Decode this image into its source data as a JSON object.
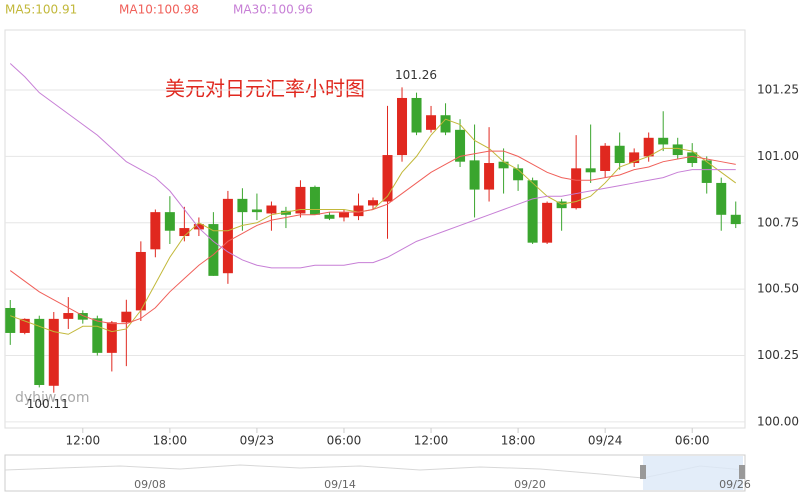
{
  "chart_data": {
    "type": "candlestick",
    "title": "美元对日元汇率小时图",
    "watermark": "dyhjw.com",
    "categories": [
      null,
      null,
      null,
      null,
      null,
      "12:00",
      null,
      null,
      null,
      null,
      null,
      "18:00",
      null,
      null,
      null,
      null,
      null,
      "09/23",
      null,
      null,
      null,
      null,
      null,
      "06:00",
      null,
      null,
      null,
      null,
      null,
      "12:00",
      null,
      null,
      null,
      null,
      null,
      "18:00",
      null,
      null,
      null,
      null,
      null,
      "09/24",
      null,
      null,
      null,
      null,
      null,
      "06:00",
      null,
      null,
      null
    ],
    "open": [
      100.429,
      100.335,
      100.388,
      100.136,
      100.388,
      100.41,
      100.39,
      100.26,
      100.375,
      100.42,
      100.65,
      100.79,
      100.7,
      100.725,
      100.745,
      100.56,
      100.84,
      100.8,
      100.785,
      100.795,
      100.785,
      100.885,
      100.78,
      100.77,
      100.775,
      100.815,
      100.83,
      101.005,
      101.22,
      101.1,
      101.155,
      101.1,
      100.985,
      100.875,
      100.98,
      100.955,
      100.91,
      100.675,
      100.83,
      100.805,
      100.955,
      100.945,
      101.04,
      100.975,
      101.0,
      101.07,
      101.045,
      101.015,
      100.985,
      100.9,
      100.78
    ],
    "high": [
      100.459,
      100.39,
      100.4,
      100.414,
      100.47,
      100.42,
      100.4,
      100.38,
      100.46,
      100.68,
      100.8,
      100.85,
      100.81,
      100.77,
      100.79,
      100.87,
      100.88,
      100.86,
      100.83,
      100.81,
      100.91,
      100.89,
      100.79,
      100.8,
      100.86,
      100.845,
      101.19,
      101.26,
      101.24,
      101.19,
      101.2,
      101.14,
      101.12,
      101.11,
      101.03,
      100.97,
      100.92,
      100.83,
      100.84,
      101.08,
      101.12,
      101.05,
      101.09,
      101.03,
      101.09,
      101.17,
      101.07,
      101.05,
      101.0,
      100.92,
      100.83
    ],
    "low": [
      100.29,
      100.33,
      100.13,
      100.11,
      100.35,
      100.37,
      100.25,
      100.19,
      100.21,
      100.38,
      100.62,
      100.67,
      100.68,
      100.7,
      100.55,
      100.52,
      100.72,
      100.76,
      100.72,
      100.73,
      100.77,
      100.78,
      100.76,
      100.755,
      100.76,
      100.8,
      100.69,
      100.98,
      101.08,
      101.09,
      101.08,
      100.96,
      100.77,
      100.83,
      100.86,
      100.87,
      100.67,
      100.67,
      100.72,
      100.8,
      100.9,
      100.92,
      100.95,
      100.96,
      100.98,
      101.02,
      100.99,
      100.96,
      100.86,
      100.72,
      100.73
    ],
    "close": [
      100.335,
      100.388,
      100.139,
      100.388,
      100.41,
      100.385,
      100.26,
      100.375,
      100.415,
      100.64,
      100.79,
      100.72,
      100.73,
      100.745,
      100.55,
      100.84,
      100.79,
      100.79,
      100.815,
      100.78,
      100.885,
      100.78,
      100.765,
      100.79,
      100.815,
      100.835,
      101.005,
      101.22,
      101.09,
      101.155,
      101.09,
      100.98,
      100.875,
      100.975,
      100.955,
      100.91,
      100.675,
      100.825,
      100.805,
      100.955,
      100.94,
      101.04,
      100.975,
      101.015,
      101.07,
      101.045,
      101.005,
      100.975,
      100.9,
      100.78,
      100.745
    ],
    "up_color": "#e0281f",
    "down_color": "#3aa52e",
    "series": [
      {
        "name": "MA5:100.91",
        "color": "#c2b83a",
        "values": [
          100.4,
          100.38,
          100.36,
          100.34,
          100.33,
          100.36,
          100.36,
          100.34,
          100.35,
          100.42,
          100.52,
          100.62,
          100.7,
          100.75,
          100.72,
          100.72,
          100.74,
          100.75,
          100.78,
          100.79,
          100.8,
          100.8,
          100.8,
          100.8,
          100.79,
          100.8,
          100.85,
          100.94,
          101.0,
          101.08,
          101.14,
          101.12,
          101.06,
          101.03,
          100.98,
          100.95,
          100.9,
          100.85,
          100.82,
          100.83,
          100.85,
          100.9,
          100.96,
          100.98,
          101.0,
          101.03,
          101.03,
          101.02,
          100.98,
          100.94,
          100.9
        ]
      },
      {
        "name": "MA10:100.98",
        "color": "#f0605a",
        "values": [
          100.57,
          100.53,
          100.49,
          100.46,
          100.43,
          100.4,
          100.38,
          100.37,
          100.37,
          100.39,
          100.43,
          100.49,
          100.54,
          100.59,
          100.63,
          100.68,
          100.71,
          100.74,
          100.76,
          100.77,
          100.78,
          100.78,
          100.79,
          100.79,
          100.79,
          100.8,
          100.82,
          100.86,
          100.9,
          100.94,
          100.97,
          101.0,
          101.01,
          101.02,
          101.02,
          101.0,
          100.97,
          100.94,
          100.92,
          100.91,
          100.91,
          100.92,
          100.93,
          100.95,
          100.96,
          100.98,
          100.99,
          101.0,
          100.99,
          100.98,
          100.97
        ]
      },
      {
        "name": "MA30:100.96",
        "color": "#c77fd6",
        "values": [
          101.35,
          101.3,
          101.24,
          101.2,
          101.16,
          101.12,
          101.08,
          101.03,
          100.98,
          100.95,
          100.92,
          100.87,
          100.8,
          100.73,
          100.68,
          100.64,
          100.61,
          100.59,
          100.58,
          100.58,
          100.58,
          100.59,
          100.59,
          100.59,
          100.6,
          100.6,
          100.62,
          100.65,
          100.68,
          100.7,
          100.72,
          100.74,
          100.76,
          100.78,
          100.8,
          100.82,
          100.84,
          100.85,
          100.85,
          100.86,
          100.87,
          100.88,
          100.89,
          100.9,
          100.91,
          100.92,
          100.94,
          100.95,
          100.95,
          100.95,
          100.95
        ]
      }
    ],
    "annotations": [
      {
        "text": "101.26",
        "value": 101.26
      },
      {
        "text": "100.11",
        "value": 100.11
      }
    ],
    "ylim": [
      99.977,
      101.476
    ],
    "yticks": [
      {
        "value": 100,
        "label": "100.00"
      },
      100.25,
      {
        "value": 100.5,
        "label": "100.50"
      },
      100.75,
      {
        "value": 101,
        "label": "101.00"
      },
      101.25
    ],
    "grid": true,
    "navigator_labels": [
      "09/08",
      "09/14",
      "09/20",
      "09/26"
    ]
  }
}
